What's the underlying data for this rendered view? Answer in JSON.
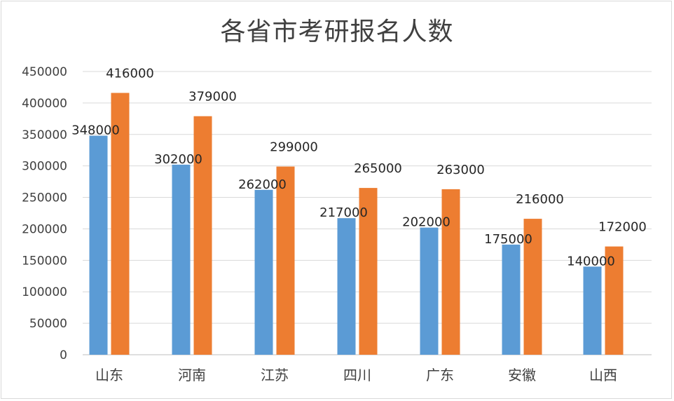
{
  "chart_data": {
    "type": "bar",
    "title": "各省市考研报名人数",
    "categories": [
      "山东",
      "河南",
      "江苏",
      "四川",
      "广东",
      "安徽",
      "山西"
    ],
    "series": [
      {
        "values": [
          348000,
          302000,
          262000,
          217000,
          202000,
          175000,
          140000
        ],
        "color": "#5b9bd5"
      },
      {
        "values": [
          416000,
          379000,
          299000,
          265000,
          263000,
          216000,
          172000
        ],
        "color": "#ed7d31"
      }
    ],
    "data_labels": [
      [
        "348000",
        "302000",
        "262000",
        "217000",
        "202000",
        "175000",
        "140000"
      ],
      [
        "416000",
        "379000",
        "299000",
        "265000",
        "263000",
        "216000",
        "172000"
      ]
    ],
    "ylim": [
      0,
      450000
    ],
    "y_ticks": [
      0,
      50000,
      100000,
      150000,
      200000,
      250000,
      300000,
      350000,
      400000,
      450000
    ],
    "y_tick_labels": [
      "0",
      "50000",
      "100000",
      "150000",
      "200000",
      "250000",
      "300000",
      "350000",
      "400000",
      "450000"
    ],
    "grid": true,
    "legend": "none",
    "xlabel": "",
    "ylabel": ""
  }
}
